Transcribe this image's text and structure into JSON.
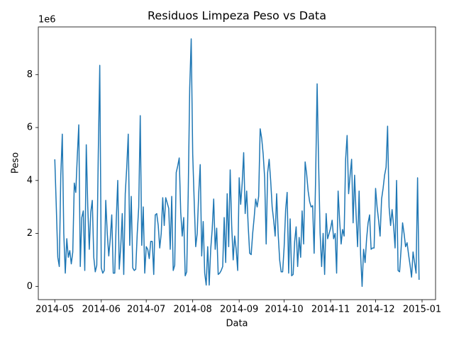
{
  "chart_data": {
    "type": "line",
    "title": "Residuos Limpeza Peso vs Data",
    "x_label": "Data",
    "y_label": "Peso",
    "y_offset_label": "1e6",
    "color": "#1f77b4",
    "x": [
      "2014-05-01",
      "2014-05-02",
      "2014-05-03",
      "2014-05-04",
      "2014-05-05",
      "2014-05-06",
      "2014-05-07",
      "2014-05-08",
      "2014-05-09",
      "2014-05-10",
      "2014-05-11",
      "2014-05-12",
      "2014-05-13",
      "2014-05-14",
      "2014-05-15",
      "2014-05-16",
      "2014-05-17",
      "2014-05-18",
      "2014-05-19",
      "2014-05-20",
      "2014-05-21",
      "2014-05-22",
      "2014-05-23",
      "2014-05-24",
      "2014-05-25",
      "2014-05-26",
      "2014-05-27",
      "2014-05-28",
      "2014-05-29",
      "2014-05-30",
      "2014-05-31",
      "2014-06-01",
      "2014-06-02",
      "2014-06-03",
      "2014-06-04",
      "2014-06-05",
      "2014-06-06",
      "2014-06-07",
      "2014-06-08",
      "2014-06-09",
      "2014-06-10",
      "2014-06-11",
      "2014-06-12",
      "2014-06-13",
      "2014-06-14",
      "2014-06-15",
      "2014-06-16",
      "2014-06-17",
      "2014-06-18",
      "2014-06-19",
      "2014-06-20",
      "2014-06-21",
      "2014-06-22",
      "2014-06-23",
      "2014-06-24",
      "2014-06-25",
      "2014-06-26",
      "2014-06-27",
      "2014-06-28",
      "2014-06-29",
      "2014-06-30",
      "2014-07-01",
      "2014-07-02",
      "2014-07-03",
      "2014-07-04",
      "2014-07-05",
      "2014-07-06",
      "2014-07-07",
      "2014-07-08",
      "2014-07-09",
      "2014-07-10",
      "2014-07-11",
      "2014-07-12",
      "2014-07-13",
      "2014-07-14",
      "2014-07-15",
      "2014-07-16",
      "2014-07-17",
      "2014-07-18",
      "2014-07-19",
      "2014-07-20",
      "2014-07-21",
      "2014-07-22",
      "2014-07-23",
      "2014-07-24",
      "2014-07-25",
      "2014-07-26",
      "2014-07-27",
      "2014-07-28",
      "2014-07-29",
      "2014-07-30",
      "2014-07-31",
      "2014-08-01",
      "2014-08-02",
      "2014-08-03",
      "2014-08-04",
      "2014-08-05",
      "2014-08-06",
      "2014-08-07",
      "2014-08-08",
      "2014-08-09",
      "2014-08-10",
      "2014-08-11",
      "2014-08-12",
      "2014-08-13",
      "2014-08-14",
      "2014-08-15",
      "2014-08-16",
      "2014-08-17",
      "2014-08-18",
      "2014-08-19",
      "2014-08-20",
      "2014-08-21",
      "2014-08-22",
      "2014-08-23",
      "2014-08-24",
      "2014-08-25",
      "2014-08-26",
      "2014-08-27",
      "2014-08-28",
      "2014-08-29",
      "2014-08-30",
      "2014-08-31",
      "2014-09-01",
      "2014-09-02",
      "2014-09-03",
      "2014-09-04",
      "2014-09-05",
      "2014-09-06",
      "2014-09-07",
      "2014-09-08",
      "2014-09-09",
      "2014-09-10",
      "2014-09-11",
      "2014-09-12",
      "2014-09-13",
      "2014-09-14",
      "2014-09-15",
      "2014-09-16",
      "2014-09-17",
      "2014-09-18",
      "2014-09-19",
      "2014-09-20",
      "2014-09-21",
      "2014-09-22",
      "2014-09-23",
      "2014-09-24",
      "2014-09-25",
      "2014-09-26",
      "2014-09-27",
      "2014-09-28",
      "2014-09-29",
      "2014-09-30",
      "2014-10-01",
      "2014-10-02",
      "2014-10-03",
      "2014-10-04",
      "2014-10-05",
      "2014-10-06",
      "2014-10-07",
      "2014-10-08",
      "2014-10-09",
      "2014-10-10",
      "2014-10-11",
      "2014-10-12",
      "2014-10-13",
      "2014-10-14",
      "2014-10-15",
      "2014-10-16",
      "2014-10-17",
      "2014-10-18",
      "2014-10-19",
      "2014-10-20",
      "2014-10-21",
      "2014-10-22",
      "2014-10-23",
      "2014-10-24",
      "2014-10-25",
      "2014-10-26",
      "2014-10-27",
      "2014-10-28",
      "2014-10-29",
      "2014-10-30",
      "2014-10-31",
      "2014-11-01",
      "2014-11-02",
      "2014-11-03",
      "2014-11-04",
      "2014-11-05",
      "2014-11-06",
      "2014-11-07",
      "2014-11-08",
      "2014-11-09",
      "2014-11-10",
      "2014-11-11",
      "2014-11-12",
      "2014-11-13",
      "2014-11-14",
      "2014-11-15",
      "2014-11-16",
      "2014-11-17",
      "2014-11-18",
      "2014-11-19",
      "2014-11-20",
      "2014-11-21",
      "2014-11-22",
      "2014-11-23",
      "2014-11-24",
      "2014-11-25",
      "2014-11-26",
      "2014-11-27",
      "2014-11-28",
      "2014-11-29",
      "2014-11-30",
      "2014-12-01",
      "2014-12-02",
      "2014-12-03",
      "2014-12-04",
      "2014-12-05",
      "2014-12-06",
      "2014-12-07",
      "2014-12-08",
      "2014-12-09",
      "2014-12-10",
      "2014-12-11",
      "2014-12-12",
      "2014-12-13",
      "2014-12-14",
      "2014-12-15",
      "2014-12-16",
      "2014-12-17",
      "2014-12-18",
      "2014-12-19",
      "2014-12-20",
      "2014-12-21",
      "2014-12-22",
      "2014-12-23",
      "2014-12-24",
      "2014-12-25",
      "2014-12-26",
      "2014-12-27",
      "2014-12-28",
      "2014-12-29",
      "2014-12-30"
    ],
    "values": [
      4.8,
      3.0,
      1.1,
      0.75,
      4.2,
      5.75,
      2.0,
      0.5,
      1.8,
      1.1,
      1.35,
      0.85,
      1.3,
      3.9,
      3.55,
      4.9,
      6.1,
      0.75,
      2.6,
      2.85,
      0.6,
      5.35,
      3.0,
      1.4,
      2.8,
      3.25,
      1.1,
      0.55,
      0.8,
      5.0,
      8.35,
      0.7,
      0.5,
      0.6,
      3.25,
      2.0,
      1.15,
      1.8,
      2.7,
      0.5,
      0.5,
      2.5,
      4.0,
      0.65,
      1.5,
      2.75,
      0.45,
      3.5,
      4.5,
      5.75,
      1.55,
      3.4,
      0.7,
      0.6,
      0.65,
      2.0,
      3.0,
      6.45,
      1.55,
      3.0,
      0.5,
      1.5,
      1.4,
      1.05,
      1.7,
      1.7,
      0.45,
      2.7,
      2.75,
      2.3,
      1.45,
      2.0,
      3.35,
      2.3,
      3.35,
      3.15,
      2.95,
      1.4,
      3.4,
      0.6,
      0.8,
      4.3,
      4.55,
      4.85,
      2.8,
      1.9,
      2.6,
      0.4,
      0.55,
      3.5,
      7.5,
      9.35,
      5.0,
      3.2,
      1.5,
      2.0,
      3.5,
      4.6,
      1.15,
      2.45,
      0.5,
      0.05,
      1.5,
      0.05,
      1.4,
      2.15,
      3.3,
      1.4,
      2.2,
      0.45,
      0.5,
      0.6,
      0.75,
      2.6,
      0.9,
      3.5,
      1.5,
      4.4,
      2.3,
      1.0,
      1.9,
      1.4,
      0.6,
      4.1,
      3.1,
      3.9,
      5.05,
      2.75,
      3.6,
      2.3,
      1.25,
      1.2,
      2.0,
      2.6,
      3.3,
      3.0,
      3.4,
      5.95,
      5.6,
      5.0,
      4.1,
      1.6,
      4.3,
      4.8,
      4.0,
      3.0,
      2.5,
      1.9,
      3.5,
      2.0,
      1.0,
      0.55,
      0.55,
      1.5,
      2.9,
      3.55,
      0.5,
      2.55,
      0.4,
      0.45,
      1.7,
      2.25,
      0.75,
      1.85,
      1.1,
      2.85,
      1.6,
      4.7,
      4.25,
      3.6,
      3.2,
      3.0,
      3.05,
      1.25,
      4.1,
      7.65,
      4.6,
      2.0,
      0.75,
      2.0,
      0.45,
      2.75,
      1.8,
      2.0,
      2.2,
      2.5,
      1.8,
      2.0,
      0.5,
      3.6,
      2.5,
      1.6,
      2.15,
      1.9,
      4.8,
      5.7,
      3.5,
      4.2,
      4.8,
      2.4,
      4.2,
      2.7,
      1.5,
      3.6,
      1.2,
      0.0,
      1.4,
      0.9,
      1.8,
      2.4,
      2.7,
      1.4,
      1.45,
      1.45,
      3.7,
      3.0,
      2.5,
      1.9,
      3.3,
      3.7,
      4.2,
      4.5,
      6.05,
      3.0,
      2.3,
      2.9,
      2.3,
      1.45,
      4.0,
      0.6,
      0.55,
      1.4,
      2.4,
      2.0,
      1.5,
      1.65,
      1.2,
      0.8,
      0.35,
      1.3,
      0.9,
      0.5,
      4.1,
      0.25
    ],
    "xlim": [
      "2014-04-20",
      "2015-01-10"
    ],
    "xticks": [
      {
        "value": "2014-05-01",
        "label": "2014-05"
      },
      {
        "value": "2014-06-01",
        "label": "2014-06"
      },
      {
        "value": "2014-07-01",
        "label": "2014-07"
      },
      {
        "value": "2014-08-01",
        "label": "2014-08"
      },
      {
        "value": "2014-09-01",
        "label": "2014-09"
      },
      {
        "value": "2014-10-01",
        "label": "2014-10"
      },
      {
        "value": "2014-11-01",
        "label": "2014-11"
      },
      {
        "value": "2014-12-01",
        "label": "2014-12"
      },
      {
        "value": "2015-01-01",
        "label": "2015-01"
      }
    ],
    "ylim": [
      -0.5,
      9.8
    ],
    "yticks": [
      0,
      2,
      4,
      6,
      8
    ],
    "grid": false
  }
}
